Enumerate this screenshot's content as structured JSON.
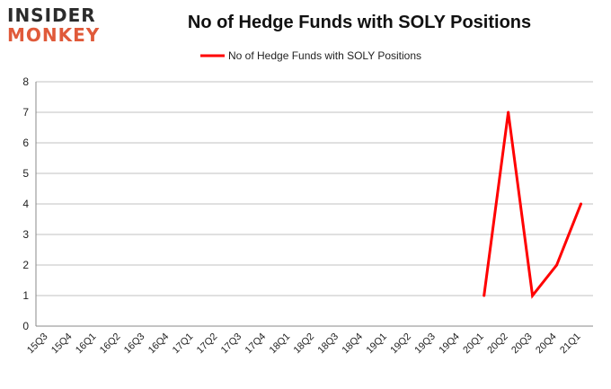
{
  "logo": {
    "line1": "INSIDER",
    "line2": "MONKEY"
  },
  "chart_data": {
    "type": "line",
    "title": "No of Hedge Funds with SOLY Positions",
    "xlabel": "",
    "ylabel": "",
    "categories": [
      "15Q3",
      "15Q4",
      "16Q1",
      "16Q2",
      "16Q3",
      "16Q4",
      "17Q1",
      "17Q2",
      "17Q3",
      "17Q4",
      "18Q1",
      "18Q2",
      "18Q3",
      "18Q4",
      "19Q1",
      "19Q2",
      "19Q3",
      "19Q4",
      "20Q1",
      "20Q2",
      "20Q3",
      "20Q4",
      "21Q1"
    ],
    "series": [
      {
        "name": "No of Hedge Funds with SOLY Positions",
        "color": "#ff0000",
        "values": [
          null,
          null,
          null,
          null,
          null,
          null,
          null,
          null,
          null,
          null,
          null,
          null,
          null,
          null,
          null,
          null,
          null,
          null,
          1,
          7,
          1,
          2,
          4
        ]
      }
    ],
    "ylim": [
      0,
      8
    ],
    "yticks": [
      0,
      1,
      2,
      3,
      4,
      5,
      6,
      7,
      8
    ],
    "grid": true,
    "legend": "top-center"
  }
}
